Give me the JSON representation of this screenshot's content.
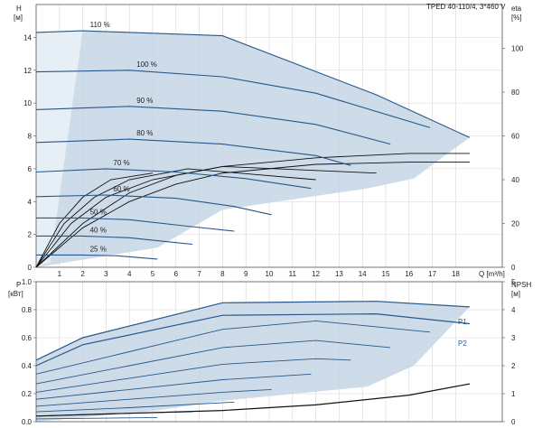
{
  "chart_data": [
    {
      "type": "line",
      "title": "TPED 40-110/4, 3*460 V",
      "xlabel": "Q [m³/h]",
      "ylabel": [
        "H",
        "[м]"
      ],
      "y2label": [
        "eta",
        "[%]"
      ],
      "xlim": [
        0,
        20
      ],
      "ylim": [
        0,
        16
      ],
      "y2lim": [
        0,
        120
      ],
      "xticks": [
        1,
        2,
        3,
        4,
        5,
        6,
        7,
        8,
        9,
        10,
        11,
        12,
        13,
        14,
        15,
        16,
        17,
        18
      ],
      "yticks": [
        0,
        2,
        4,
        6,
        8,
        10,
        12,
        14
      ],
      "y2ticks": [
        0,
        20,
        40,
        60,
        80,
        100
      ],
      "grid": true,
      "region": [
        [
          0,
          14.3
        ],
        [
          2,
          14.4
        ],
        [
          8,
          14.1
        ],
        [
          14.6,
          10.5
        ],
        [
          18.6,
          7.9
        ],
        [
          16.2,
          5.4
        ],
        [
          14.2,
          4.8
        ],
        [
          8,
          3.5
        ],
        [
          5.2,
          1.2
        ],
        [
          0,
          0
        ]
      ],
      "eta_band": [
        [
          0,
          0
        ],
        [
          0,
          14.3
        ],
        [
          2,
          14.4
        ],
        [
          0.6,
          0.3
        ]
      ],
      "speed_curves": [
        {
          "label": "110 %",
          "points": [
            [
              0,
              14.3
            ],
            [
              2,
              14.4
            ],
            [
              8,
              14.1
            ],
            [
              14.6,
              10.5
            ],
            [
              18.6,
              7.9
            ]
          ]
        },
        {
          "label": "100 %",
          "points": [
            [
              0,
              11.9
            ],
            [
              4,
              12.0
            ],
            [
              8,
              11.6
            ],
            [
              12,
              10.6
            ],
            [
              16.9,
              8.5
            ]
          ]
        },
        {
          "label": "90 %",
          "points": [
            [
              0,
              9.6
            ],
            [
              4,
              9.8
            ],
            [
              8,
              9.5
            ],
            [
              12,
              8.7
            ],
            [
              15.2,
              7.5
            ]
          ]
        },
        {
          "label": "80 %",
          "points": [
            [
              0,
              7.6
            ],
            [
              4,
              7.8
            ],
            [
              8,
              7.5
            ],
            [
              12,
              6.8
            ],
            [
              13.5,
              6.2
            ]
          ]
        },
        {
          "label": "70 %",
          "points": [
            [
              0,
              5.8
            ],
            [
              3,
              6.0
            ],
            [
              6,
              5.8
            ],
            [
              9,
              5.4
            ],
            [
              11.8,
              4.8
            ]
          ]
        },
        {
          "label": "60 %",
          "points": [
            [
              0,
              4.3
            ],
            [
              3,
              4.4
            ],
            [
              6,
              4.2
            ],
            [
              8.5,
              3.7
            ],
            [
              10.1,
              3.2
            ]
          ]
        },
        {
          "label": "50 %",
          "points": [
            [
              0,
              3.0
            ],
            [
              2,
              3.0
            ],
            [
              4,
              2.9
            ],
            [
              6.5,
              2.5
            ],
            [
              8.5,
              2.2
            ]
          ]
        },
        {
          "label": "40 %",
          "points": [
            [
              0,
              1.9
            ],
            [
              2,
              1.9
            ],
            [
              4,
              1.8
            ],
            [
              6,
              1.5
            ],
            [
              6.7,
              1.4
            ]
          ]
        },
        {
          "label": "25 %",
          "points": [
            [
              0,
              0.75
            ],
            [
              2,
              0.75
            ],
            [
              3.5,
              0.7
            ],
            [
              5.2,
              0.5
            ]
          ]
        }
      ],
      "eta_curves": [
        {
          "points": [
            [
              0,
              0
            ],
            [
              2,
              20
            ],
            [
              4,
              34
            ],
            [
              6,
              42
            ],
            [
              8,
              46
            ],
            [
              12,
              50
            ],
            [
              16,
              52
            ],
            [
              18.6,
              52
            ]
          ]
        },
        {
          "points": [
            [
              0,
              0
            ],
            [
              2,
              18
            ],
            [
              4,
              30
            ],
            [
              6,
              38
            ],
            [
              8,
              43
            ],
            [
              12,
              47
            ],
            [
              16,
              48
            ],
            [
              18.6,
              48
            ]
          ]
        },
        {
          "points": [
            [
              0,
              0
            ],
            [
              1.5,
              20
            ],
            [
              3,
              32
            ],
            [
              5,
              40
            ],
            [
              8,
              46
            ],
            [
              14.6,
              43
            ]
          ]
        },
        {
          "points": [
            [
              0,
              0
            ],
            [
              1.2,
              20
            ],
            [
              2.5,
              32
            ],
            [
              4,
              40
            ],
            [
              6.5,
              45
            ],
            [
              12,
              40
            ]
          ]
        },
        {
          "points": [
            [
              0,
              0
            ],
            [
              1,
              20
            ],
            [
              2,
              32
            ],
            [
              3.2,
              40
            ],
            [
              5,
              43
            ]
          ]
        }
      ]
    },
    {
      "type": "line",
      "xlabel": "",
      "ylabel": [
        "P",
        "[кВт]"
      ],
      "y2label": [
        "NPSH",
        "[м]"
      ],
      "xlim": [
        0,
        20
      ],
      "ylim": [
        0,
        1.0
      ],
      "y2lim": [
        0,
        5
      ],
      "yticks": [
        0,
        0.2,
        0.4,
        0.6,
        0.8,
        1.0
      ],
      "y2ticks": [
        0,
        1,
        2,
        3,
        4,
        5
      ],
      "grid": true,
      "region": [
        [
          0,
          0.44
        ],
        [
          2,
          0.6
        ],
        [
          8,
          0.85
        ],
        [
          14.6,
          0.86
        ],
        [
          18.6,
          0.82
        ],
        [
          16.2,
          0.4
        ],
        [
          14.2,
          0.25
        ],
        [
          8,
          0.15
        ],
        [
          5.2,
          0.08
        ],
        [
          0,
          0
        ]
      ],
      "series_labels": [
        "P1",
        "P2"
      ],
      "P1": [
        [
          0,
          0.44
        ],
        [
          2,
          0.6
        ],
        [
          8,
          0.85
        ],
        [
          14.6,
          0.86
        ],
        [
          18.6,
          0.82
        ]
      ],
      "P2": [
        [
          0,
          0.4
        ],
        [
          2,
          0.55
        ],
        [
          8,
          0.76
        ],
        [
          14.6,
          0.77
        ],
        [
          18.6,
          0.7
        ]
      ],
      "speed_curves": [
        {
          "points": [
            [
              0,
              0.34
            ],
            [
              4,
              0.5
            ],
            [
              8,
              0.66
            ],
            [
              12,
              0.72
            ],
            [
              16.9,
              0.64
            ]
          ]
        },
        {
          "points": [
            [
              0,
              0.27
            ],
            [
              4,
              0.4
            ],
            [
              8,
              0.53
            ],
            [
              12,
              0.58
            ],
            [
              15.2,
              0.53
            ]
          ]
        },
        {
          "points": [
            [
              0,
              0.21
            ],
            [
              4,
              0.31
            ],
            [
              8,
              0.41
            ],
            [
              12,
              0.45
            ],
            [
              13.5,
              0.44
            ]
          ]
        },
        {
          "points": [
            [
              0,
              0.16
            ],
            [
              4,
              0.23
            ],
            [
              8,
              0.3
            ],
            [
              11.8,
              0.34
            ]
          ]
        },
        {
          "points": [
            [
              0,
              0.11
            ],
            [
              4,
              0.16
            ],
            [
              8,
              0.21
            ],
            [
              10.1,
              0.23
            ]
          ]
        },
        {
          "points": [
            [
              0,
              0.07
            ],
            [
              4,
              0.1
            ],
            [
              8.5,
              0.14
            ]
          ]
        },
        {
          "points": [
            [
              0,
              0.04
            ],
            [
              4,
              0.06
            ],
            [
              6.7,
              0.07
            ]
          ]
        },
        {
          "points": [
            [
              0,
              0.02
            ],
            [
              5.2,
              0.03
            ]
          ]
        }
      ],
      "npsh": [
        [
          0,
          0.2
        ],
        [
          4,
          0.3
        ],
        [
          8,
          0.4
        ],
        [
          12,
          0.6
        ],
        [
          16,
          0.95
        ],
        [
          18.6,
          1.35
        ]
      ]
    }
  ]
}
